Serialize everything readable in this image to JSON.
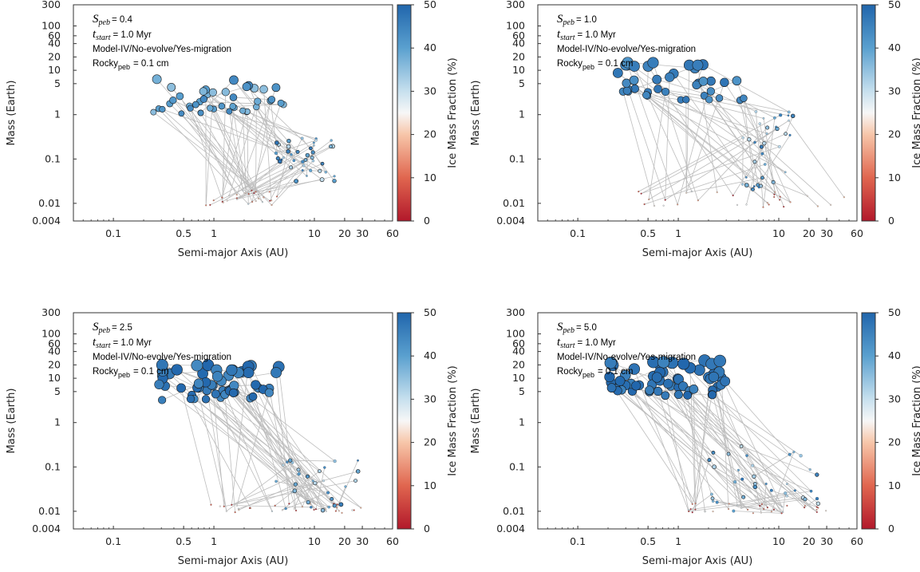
{
  "colors": {
    "track": "#bdbdbd",
    "frame": "#333333"
  },
  "chart_data": [
    {
      "type": "scatter",
      "xlabel": "Semi-major Axis (AU)",
      "ylabel": "Mass (Earth)",
      "colorbar_label": "Ice Mass Fraction (%)",
      "x_scale": "log",
      "y_scale": "log",
      "xlim": [
        0.04,
        60
      ],
      "ylim": [
        0.004,
        300
      ],
      "clim": [
        0,
        50
      ],
      "xticks": [
        "0.1",
        "0.5",
        "1",
        "10",
        "20",
        "30",
        "60"
      ],
      "yticks": [
        "300",
        "100",
        "60",
        "40",
        "20",
        "10",
        "5",
        "1",
        "0.1",
        "0.01",
        "0.004"
      ],
      "cticks": [
        "0",
        "10",
        "20",
        "30",
        "40",
        "50"
      ],
      "annotation": {
        "s_sym": "S",
        "s_sub": "peb",
        "s_val": "= 0.4",
        "t_sym": "t",
        "t_sub": "start",
        "t_val": "= 1.0 Myr",
        "model": "Model-IV/No-evolve/Yes-migration",
        "rocky": "Rocky",
        "rocky_sub": "peb",
        "rocky_val": "= 0.1 cm"
      },
      "seed": 11,
      "bigN": 45,
      "bigX": [
        0.25,
        5.0
      ],
      "bigM": [
        1.0,
        6.5
      ],
      "smallN": 40,
      "smallX": [
        4,
        16
      ],
      "smallM": [
        0.03,
        0.3
      ],
      "endN": 30,
      "endX": [
        0.7,
        4.5
      ],
      "endM": [
        0.009,
        0.02
      ],
      "bigIce": [
        35,
        45
      ]
    },
    {
      "type": "scatter",
      "xlabel": "Semi-major Axis (AU)",
      "ylabel": "Mass (Earth)",
      "colorbar_label": "Ice Mass Fraction (%)",
      "x_scale": "log",
      "y_scale": "log",
      "xlim": [
        0.04,
        60
      ],
      "ylim": [
        0.004,
        300
      ],
      "clim": [
        0,
        50
      ],
      "xticks": [
        "0.1",
        "0.5",
        "1",
        "10",
        "20",
        "30",
        "60"
      ],
      "yticks": [
        "300",
        "100",
        "60",
        "40",
        "20",
        "10",
        "5",
        "1",
        "0.1",
        "0.01",
        "0.004"
      ],
      "cticks": [
        "0",
        "10",
        "20",
        "30",
        "40",
        "50"
      ],
      "annotation": {
        "s_sym": "S",
        "s_sub": "peb",
        "s_val": "= 1.0",
        "t_sym": "t",
        "t_sub": "start",
        "t_val": "= 1.0 Myr",
        "model": "Model-IV/No-evolve/Yes-migration",
        "rocky": "Rocky",
        "rocky_sub": "peb",
        "rocky_val": "= 0.1 cm"
      },
      "seed": 23,
      "bigN": 40,
      "bigX": [
        0.25,
        5.0
      ],
      "bigM": [
        2.0,
        15
      ],
      "smallN": 35,
      "smallX": [
        4,
        14
      ],
      "smallM": [
        0.02,
        1.2
      ],
      "endN": 30,
      "endX": [
        0.4,
        45
      ],
      "endM": [
        0.008,
        0.02
      ],
      "bigIce": [
        42,
        48
      ]
    },
    {
      "type": "scatter",
      "xlabel": "Semi-major Axis (AU)",
      "ylabel": "Mass (Earth)",
      "colorbar_label": "Ice Mass Fraction (%)",
      "x_scale": "log",
      "y_scale": "log",
      "xlim": [
        0.04,
        60
      ],
      "ylim": [
        0.004,
        300
      ],
      "clim": [
        0,
        50
      ],
      "xticks": [
        "0.1",
        "0.5",
        "1",
        "10",
        "20",
        "30",
        "60"
      ],
      "yticks": [
        "300",
        "100",
        "60",
        "40",
        "20",
        "10",
        "5",
        "1",
        "0.1",
        "0.01",
        "0.004"
      ],
      "cticks": [
        "0",
        "10",
        "20",
        "30",
        "40",
        "50"
      ],
      "annotation": {
        "s_sym": "S",
        "s_sub": "peb",
        "s_val": "= 2.5",
        "t_sym": "t",
        "t_sub": "start",
        "t_val": "= 1.0 Myr",
        "model": "Model-IV/No-evolve/Yes-migration",
        "rocky": "Rocky",
        "rocky_sub": "peb",
        "rocky_val": "= 0.1 cm"
      },
      "seed": 37,
      "bigN": 55,
      "bigX": [
        0.27,
        4.5
      ],
      "bigM": [
        3.0,
        20
      ],
      "smallN": 30,
      "smallX": [
        4,
        28
      ],
      "smallM": [
        0.01,
        0.15
      ],
      "endN": 35,
      "endX": [
        0.9,
        30
      ],
      "endM": [
        0.009,
        0.015
      ],
      "bigIce": [
        44,
        50
      ]
    },
    {
      "type": "scatter",
      "xlabel": "Semi-major Axis (AU)",
      "ylabel": "Mass (Earth)",
      "colorbar_label": "Ice Mass Fraction (%)",
      "x_scale": "log",
      "y_scale": "log",
      "xlim": [
        0.04,
        60
      ],
      "ylim": [
        0.004,
        300
      ],
      "clim": [
        0,
        50
      ],
      "xticks": [
        "0.1",
        "0.5",
        "1",
        "10",
        "20",
        "30",
        "60"
      ],
      "yticks": [
        "300",
        "100",
        "60",
        "40",
        "20",
        "10",
        "5",
        "1",
        "0.1",
        "0.01",
        "0.004"
      ],
      "cticks": [
        "0",
        "10",
        "20",
        "30",
        "40",
        "50"
      ],
      "annotation": {
        "s_sym": "S",
        "s_sub": "peb",
        "s_val": "= 5.0",
        "t_sym": "t",
        "t_sub": "start",
        "t_val": "= 1.0 Myr",
        "model": "Model-IV/No-evolve/Yes-migration",
        "rocky": "Rocky",
        "rocky_sub": "peb",
        "rocky_val": "= 0.1 cm"
      },
      "seed": 51,
      "bigN": 60,
      "bigX": [
        0.2,
        3.2
      ],
      "bigM": [
        4.0,
        25
      ],
      "smallN": 35,
      "smallX": [
        2,
        25
      ],
      "smallM": [
        0.01,
        0.3
      ],
      "endN": 35,
      "endX": [
        1.0,
        30
      ],
      "endM": [
        0.009,
        0.015
      ],
      "bigIce": [
        45,
        50
      ]
    }
  ]
}
